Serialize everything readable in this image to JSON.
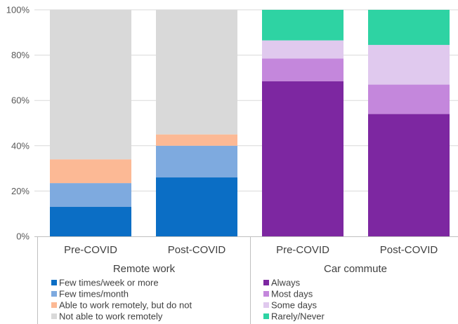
{
  "chart_data": {
    "type": "bar",
    "stacked": true,
    "y_axis": {
      "ylim": [
        0,
        100
      ],
      "ticks": [
        "0%",
        "20%",
        "40%",
        "60%",
        "80%",
        "100%"
      ]
    },
    "grid": true,
    "groups": [
      {
        "label": "Remote work",
        "categories": [
          "Pre-COVID",
          "Post-COVID"
        ],
        "series": [
          {
            "name": "Few times/week or more",
            "color": "#0b6ec5",
            "values": [
              13,
              26
            ]
          },
          {
            "name": "Few times/month",
            "color": "#7eaadf",
            "values": [
              10.5,
              14
            ]
          },
          {
            "name": "Able to work remotely, but do not",
            "color": "#fcb995",
            "values": [
              10.5,
              5
            ]
          },
          {
            "name": "Not able to work remotely",
            "color": "#d9d9d9",
            "values": [
              66,
              55
            ]
          }
        ]
      },
      {
        "label": "Car commute",
        "categories": [
          "Pre-COVID",
          "Post-COVID"
        ],
        "series": [
          {
            "name": "Always",
            "color": "#7d27a1",
            "values": [
              68.5,
              54
            ]
          },
          {
            "name": "Most days",
            "color": "#c487dc",
            "values": [
              10,
              13
            ]
          },
          {
            "name": "Some days",
            "color": "#e0c9ee",
            "values": [
              8,
              17.5
            ]
          },
          {
            "name": "Rarely/Never",
            "color": "#2ed3a3",
            "values": [
              13.5,
              15.5
            ]
          }
        ]
      }
    ]
  }
}
